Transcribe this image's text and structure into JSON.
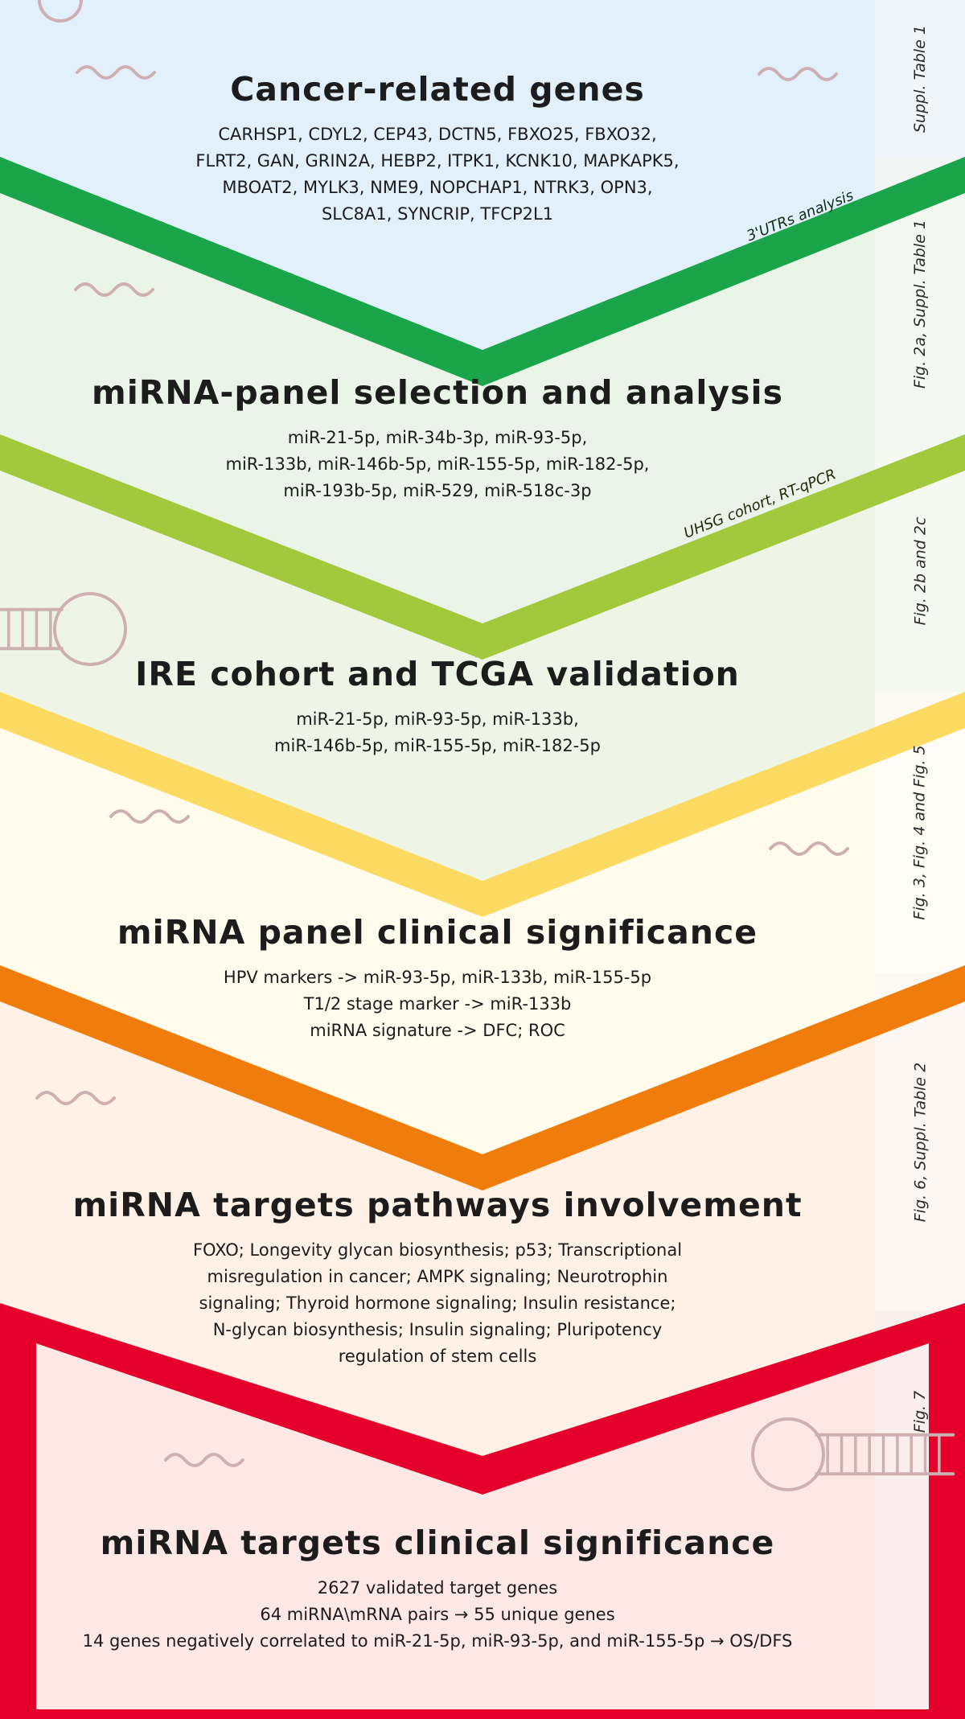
{
  "stages": [
    {
      "title": "Cancer-related genes",
      "lines": [
        "CARHSP1, CDYL2, CEP43, DCTN5, FBXO25, FBXO32,",
        "FLRT2, GAN, GRIN2A, HEBP2, ITPK1, KCNK10, MAPKAPK5,",
        "MBOAT2, MYLK3, NME9, NOPCHAP1, NTRK3, OPN3,",
        "SLC8A1, SYNCRIP, TFCP2L1"
      ],
      "side_label": "Suppl. Table 1"
    },
    {
      "title": "miRNA-panel selection and analysis",
      "lines": [
        "miR-21-5p, miR-34b-3p, miR-93-5p,",
        "miR-133b, miR-146b-5p, miR-155-5p, miR-182-5p,",
        "miR-193b-5p, miR-529, miR-518c-3p"
      ],
      "side_label": "Fig. 2a, Suppl. Table 1"
    },
    {
      "title": "IRE cohort and TCGA validation",
      "lines": [
        "miR-21-5p, miR-93-5p, miR-133b,",
        "miR-146b-5p, miR-155-5p, miR-182-5p"
      ],
      "side_label": "Fig. 2b and 2c"
    },
    {
      "title": "miRNA panel clinical significance",
      "lines": [
        "HPV markers -> miR-93-5p, miR-133b, miR-155-5p",
        "T1/2 stage marker -> miR-133b",
        "miRNA signature -> DFC; ROC"
      ],
      "side_label": "Fig. 3, Fig. 4 and Fig. 5"
    },
    {
      "title": "miRNA targets pathways involvement",
      "lines": [
        "FOXO; Longevity glycan biosynthesis; p53; Transcriptional",
        "misregulation in cancer; AMPK signaling; Neurotrophin",
        "signaling; Thyroid hormone signaling; Insulin resistance;",
        "N-glycan biosynthesis; Insulin signaling; Pluripotency",
        "regulation of stem cells"
      ],
      "side_label": "Fig. 6, Suppl. Table 2"
    },
    {
      "title": "miRNA targets clinical significance",
      "lines": [
        "2627 validated target genes",
        "64 miRNA\\mRNA pairs → 55 unique genes",
        "14 genes negatively correlated to miR-21-5p, miR-93-5p, and miR-155-5p → OS/DFS"
      ],
      "side_label": "Fig. 7"
    }
  ],
  "banners": [
    {
      "text": "3'UTRs analysis",
      "color": "#1aa54a",
      "text_color": "#0f2e14"
    },
    {
      "text": "UHSG cohort, RT-qPCR",
      "color": "#a2c83c",
      "text_color": "#1e2a0a"
    }
  ],
  "colors": {
    "region_bg": [
      "#e1f0fb",
      "#eaf4e8",
      "#eef5e6",
      "#fffcee",
      "#fff1e6",
      "#fde8e6"
    ],
    "chevrons": [
      "#1aa54a",
      "#a2c83c",
      "#fddb63",
      "#f07d0b"
    ],
    "final_box": "#e4002b",
    "side_bg": [
      "#f2f6fa",
      "#f5f8f3",
      "#f7f9f3",
      "#fdfcf6",
      "#fcf8f4",
      "#f8eeed"
    ],
    "decor": "#cfb0b0"
  }
}
